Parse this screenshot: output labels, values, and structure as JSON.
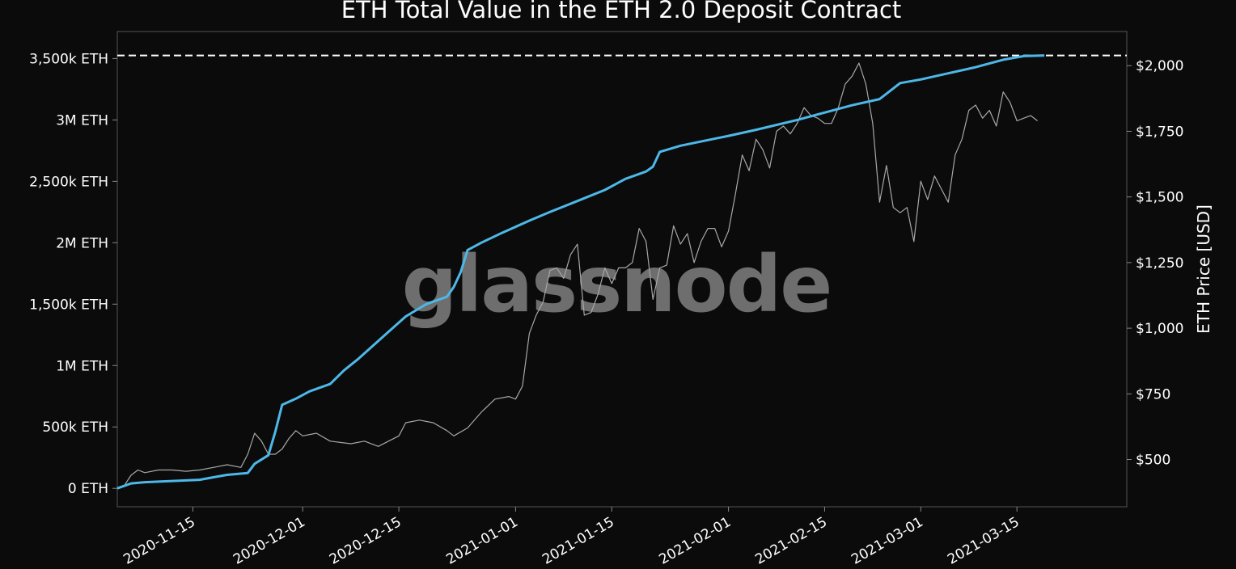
{
  "chart_data": {
    "type": "line",
    "title": "ETH Total Value in the ETH 2.0 Deposit Contract",
    "watermark": "glassnode",
    "xlabel": "",
    "ylabel_left": "",
    "ylabel_right": "ETH Price [USD]",
    "x_axis": {
      "type": "date",
      "range": [
        "2020-11-04",
        "2021-03-31"
      ],
      "ticks": [
        "2020-11-15",
        "2020-12-01",
        "2020-12-15",
        "2021-01-01",
        "2021-01-15",
        "2021-02-01",
        "2021-02-15",
        "2021-03-01",
        "2021-03-15"
      ]
    },
    "y_left": {
      "range": [
        -150000,
        3720000
      ],
      "ticks": [
        {
          "value": 0,
          "label": "0 ETH"
        },
        {
          "value": 500000,
          "label": "500k ETH"
        },
        {
          "value": 1000000,
          "label": "1M ETH"
        },
        {
          "value": 1500000,
          "label": "1,500k ETH"
        },
        {
          "value": 2000000,
          "label": "2M ETH"
        },
        {
          "value": 2500000,
          "label": "2,500k ETH"
        },
        {
          "value": 3000000,
          "label": "3M ETH"
        },
        {
          "value": 3500000,
          "label": "3,500k ETH"
        }
      ]
    },
    "y_right": {
      "range": [
        320,
        2130
      ],
      "ticks": [
        {
          "value": 500,
          "label": "$500"
        },
        {
          "value": 750,
          "label": "$750"
        },
        {
          "value": 1000,
          "label": "$1,000"
        },
        {
          "value": 1250,
          "label": "$1,250"
        },
        {
          "value": 1500,
          "label": "$1,500"
        },
        {
          "value": 1750,
          "label": "$1,750"
        },
        {
          "value": 2000,
          "label": "$2,000"
        }
      ]
    },
    "reference_line": {
      "axis": "left",
      "value": 3525000,
      "style": "dashed",
      "color": "#ffffff"
    },
    "series": [
      {
        "axis": "left",
        "color": "#4db8e8",
        "points": [
          [
            "2020-11-04",
            0
          ],
          [
            "2020-11-05",
            20000
          ],
          [
            "2020-11-06",
            40000
          ],
          [
            "2020-11-08",
            50000
          ],
          [
            "2020-11-12",
            60000
          ],
          [
            "2020-11-16",
            70000
          ],
          [
            "2020-11-18",
            90000
          ],
          [
            "2020-11-20",
            110000
          ],
          [
            "2020-11-23",
            125000
          ],
          [
            "2020-11-24",
            200000
          ],
          [
            "2020-11-26",
            270000
          ],
          [
            "2020-11-27",
            460000
          ],
          [
            "2020-11-28",
            680000
          ],
          [
            "2020-11-30",
            730000
          ],
          [
            "2020-12-02",
            790000
          ],
          [
            "2020-12-05",
            850000
          ],
          [
            "2020-12-07",
            960000
          ],
          [
            "2020-12-09",
            1050000
          ],
          [
            "2020-12-11",
            1150000
          ],
          [
            "2020-12-13",
            1250000
          ],
          [
            "2020-12-16",
            1400000
          ],
          [
            "2020-12-19",
            1500000
          ],
          [
            "2020-12-22",
            1560000
          ],
          [
            "2020-12-23",
            1640000
          ],
          [
            "2020-12-24",
            1760000
          ],
          [
            "2020-12-25",
            1940000
          ],
          [
            "2020-12-27",
            2000000
          ],
          [
            "2020-12-30",
            2080000
          ],
          [
            "2021-01-03",
            2180000
          ],
          [
            "2021-01-06",
            2250000
          ],
          [
            "2021-01-10",
            2340000
          ],
          [
            "2021-01-14",
            2430000
          ],
          [
            "2021-01-17",
            2520000
          ],
          [
            "2021-01-20",
            2580000
          ],
          [
            "2021-01-21",
            2620000
          ],
          [
            "2021-01-22",
            2740000
          ],
          [
            "2021-01-25",
            2790000
          ],
          [
            "2021-02-01",
            2870000
          ],
          [
            "2021-02-05",
            2920000
          ],
          [
            "2021-02-11",
            3000000
          ],
          [
            "2021-02-15",
            3060000
          ],
          [
            "2021-02-19",
            3120000
          ],
          [
            "2021-02-23",
            3170000
          ],
          [
            "2021-02-26",
            3300000
          ],
          [
            "2021-03-01",
            3330000
          ],
          [
            "2021-03-05",
            3380000
          ],
          [
            "2021-03-09",
            3430000
          ],
          [
            "2021-03-13",
            3490000
          ],
          [
            "2021-03-16",
            3520000
          ],
          [
            "2021-03-19",
            3525000
          ]
        ]
      },
      {
        "axis": "right",
        "color": "#a8a8a8",
        "points": [
          [
            "2020-11-04",
            390
          ],
          [
            "2020-11-05",
            400
          ],
          [
            "2020-11-06",
            440
          ],
          [
            "2020-11-07",
            460
          ],
          [
            "2020-11-08",
            450
          ],
          [
            "2020-11-10",
            460
          ],
          [
            "2020-11-12",
            460
          ],
          [
            "2020-11-14",
            455
          ],
          [
            "2020-11-16",
            460
          ],
          [
            "2020-11-18",
            470
          ],
          [
            "2020-11-20",
            480
          ],
          [
            "2020-11-22",
            470
          ],
          [
            "2020-11-23",
            520
          ],
          [
            "2020-11-24",
            600
          ],
          [
            "2020-11-25",
            570
          ],
          [
            "2020-11-26",
            520
          ],
          [
            "2020-11-27",
            520
          ],
          [
            "2020-11-28",
            540
          ],
          [
            "2020-11-29",
            580
          ],
          [
            "2020-11-30",
            610
          ],
          [
            "2020-12-01",
            590
          ],
          [
            "2020-12-03",
            600
          ],
          [
            "2020-12-05",
            570
          ],
          [
            "2020-12-08",
            560
          ],
          [
            "2020-12-10",
            570
          ],
          [
            "2020-12-12",
            550
          ],
          [
            "2020-12-15",
            590
          ],
          [
            "2020-12-16",
            640
          ],
          [
            "2020-12-18",
            650
          ],
          [
            "2020-12-20",
            640
          ],
          [
            "2020-12-22",
            610
          ],
          [
            "2020-12-23",
            590
          ],
          [
            "2020-12-25",
            620
          ],
          [
            "2020-12-27",
            680
          ],
          [
            "2020-12-29",
            730
          ],
          [
            "2020-12-31",
            740
          ],
          [
            "2021-01-01",
            730
          ],
          [
            "2021-01-02",
            780
          ],
          [
            "2021-01-03",
            980
          ],
          [
            "2021-01-04",
            1050
          ],
          [
            "2021-01-05",
            1100
          ],
          [
            "2021-01-06",
            1220
          ],
          [
            "2021-01-07",
            1230
          ],
          [
            "2021-01-08",
            1190
          ],
          [
            "2021-01-09",
            1280
          ],
          [
            "2021-01-10",
            1320
          ],
          [
            "2021-01-11",
            1050
          ],
          [
            "2021-01-12",
            1060
          ],
          [
            "2021-01-13",
            1130
          ],
          [
            "2021-01-14",
            1230
          ],
          [
            "2021-01-15",
            1170
          ],
          [
            "2021-01-16",
            1230
          ],
          [
            "2021-01-17",
            1230
          ],
          [
            "2021-01-18",
            1250
          ],
          [
            "2021-01-19",
            1380
          ],
          [
            "2021-01-20",
            1330
          ],
          [
            "2021-01-21",
            1110
          ],
          [
            "2021-01-22",
            1230
          ],
          [
            "2021-01-23",
            1240
          ],
          [
            "2021-01-24",
            1390
          ],
          [
            "2021-01-25",
            1320
          ],
          [
            "2021-01-26",
            1360
          ],
          [
            "2021-01-27",
            1250
          ],
          [
            "2021-01-28",
            1330
          ],
          [
            "2021-01-29",
            1380
          ],
          [
            "2021-01-30",
            1380
          ],
          [
            "2021-01-31",
            1310
          ],
          [
            "2021-02-01",
            1370
          ],
          [
            "2021-02-02",
            1510
          ],
          [
            "2021-02-03",
            1660
          ],
          [
            "2021-02-04",
            1600
          ],
          [
            "2021-02-05",
            1720
          ],
          [
            "2021-02-06",
            1680
          ],
          [
            "2021-02-07",
            1610
          ],
          [
            "2021-02-08",
            1750
          ],
          [
            "2021-02-09",
            1770
          ],
          [
            "2021-02-10",
            1740
          ],
          [
            "2021-02-11",
            1780
          ],
          [
            "2021-02-12",
            1840
          ],
          [
            "2021-02-13",
            1810
          ],
          [
            "2021-02-14",
            1800
          ],
          [
            "2021-02-15",
            1780
          ],
          [
            "2021-02-16",
            1780
          ],
          [
            "2021-02-17",
            1840
          ],
          [
            "2021-02-18",
            1930
          ],
          [
            "2021-02-19",
            1960
          ],
          [
            "2021-02-20",
            2010
          ],
          [
            "2021-02-21",
            1930
          ],
          [
            "2021-02-22",
            1780
          ],
          [
            "2021-02-23",
            1480
          ],
          [
            "2021-02-24",
            1620
          ],
          [
            "2021-02-25",
            1460
          ],
          [
            "2021-02-26",
            1440
          ],
          [
            "2021-02-27",
            1460
          ],
          [
            "2021-02-28",
            1330
          ],
          [
            "2021-03-01",
            1560
          ],
          [
            "2021-03-02",
            1490
          ],
          [
            "2021-03-03",
            1580
          ],
          [
            "2021-03-04",
            1530
          ],
          [
            "2021-03-05",
            1480
          ],
          [
            "2021-03-06",
            1660
          ],
          [
            "2021-03-07",
            1720
          ],
          [
            "2021-03-08",
            1830
          ],
          [
            "2021-03-09",
            1850
          ],
          [
            "2021-03-10",
            1800
          ],
          [
            "2021-03-11",
            1830
          ],
          [
            "2021-03-12",
            1770
          ],
          [
            "2021-03-13",
            1900
          ],
          [
            "2021-03-14",
            1860
          ],
          [
            "2021-03-15",
            1790
          ],
          [
            "2021-03-16",
            1800
          ],
          [
            "2021-03-17",
            1810
          ],
          [
            "2021-03-18",
            1790
          ]
        ]
      }
    ]
  }
}
